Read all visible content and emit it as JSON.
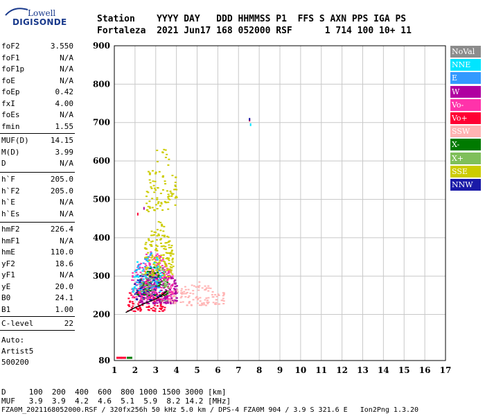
{
  "logo": {
    "top": "Lowell",
    "bottom": "DIGISONDE"
  },
  "header": {
    "row1": "Station    YYYY DAY   DDD HHMMSS P1  FFS S AXN PPS IGA PS",
    "row2": "Fortaleza  2021 Jun17 168 052000 RSF      1 714 100 10+ 11"
  },
  "params_group1": [
    {
      "name": "foF2",
      "value": "3.550"
    },
    {
      "name": "foF1",
      "value": "N/A"
    },
    {
      "name": "foF1p",
      "value": "N/A"
    },
    {
      "name": "foE",
      "value": "N/A"
    },
    {
      "name": "foEp",
      "value": "0.42"
    },
    {
      "name": "fxI",
      "value": "4.00"
    },
    {
      "name": "foEs",
      "value": "N/A"
    },
    {
      "name": "fmin",
      "value": "1.55"
    }
  ],
  "params_group2": [
    {
      "name": "MUF(D)",
      "value": "14.15"
    },
    {
      "name": "M(D)",
      "value": "3.99"
    },
    {
      "name": "D",
      "value": "N/A"
    }
  ],
  "params_group3": [
    {
      "name": "h`F",
      "value": "205.0"
    },
    {
      "name": "h`F2",
      "value": "205.0"
    },
    {
      "name": "h`E",
      "value": "N/A"
    },
    {
      "name": "h`Es",
      "value": "N/A"
    }
  ],
  "params_group4": [
    {
      "name": "hmF2",
      "value": "226.4"
    },
    {
      "name": "hmF1",
      "value": "N/A"
    },
    {
      "name": "hmE",
      "value": "110.0"
    },
    {
      "name": "yF2",
      "value": "18.6"
    },
    {
      "name": "yF1",
      "value": "N/A"
    },
    {
      "name": "yE",
      "value": "20.0"
    },
    {
      "name": "B0",
      "value": "24.1"
    },
    {
      "name": "B1",
      "value": "1.00"
    }
  ],
  "clevel": {
    "name": "C-level",
    "value": "22"
  },
  "auto": {
    "line1": "Auto:",
    "line2": "Artist5",
    "line3": "500200"
  },
  "legend": [
    {
      "label": "NoVal",
      "color": "#8c8c8c"
    },
    {
      "label": "NNE",
      "color": "#00e5ff"
    },
    {
      "label": "E",
      "color": "#3399ff"
    },
    {
      "label": "W",
      "color": "#b000a0"
    },
    {
      "label": "Vo-",
      "color": "#ff33aa"
    },
    {
      "label": "Vo+",
      "color": "#ff0033"
    },
    {
      "label": "SSW",
      "color": "#ffb3b3"
    },
    {
      "label": "X-",
      "color": "#007a00"
    },
    {
      "label": "X+",
      "color": "#7fbf5a"
    },
    {
      "label": "SSE",
      "color": "#cccc00"
    },
    {
      "label": "NNW",
      "color": "#1a1aa8"
    }
  ],
  "footer": {
    "line1": "D     100  200  400  600  800 1000 1500 3000 [km]",
    "line2": "MUF   3.9  3.9  4.2  4.6  5.1  5.9  8.2 14.2 [MHz]",
    "line3": "FZA0M_2021168052000.RSF / 320fx256h 50 kHz 5.0 km / DPS-4 FZA0M 904 / 3.9 S 321.6 E   Ion2Png 1.3.20"
  },
  "chart_data": {
    "type": "scatter",
    "xlim": [
      1,
      17
    ],
    "ylim": [
      80,
      900
    ],
    "xticks": [
      1,
      2,
      3,
      4,
      5,
      6,
      7,
      8,
      9,
      10,
      11,
      12,
      13,
      14,
      15,
      16,
      17
    ],
    "yticks": [
      80,
      200,
      300,
      400,
      500,
      600,
      700,
      800,
      900
    ],
    "grid": true,
    "clusters": [
      {
        "name": "Vo+",
        "x": [
          1.6,
          3.4
        ],
        "y": [
          210,
          300
        ],
        "n": 120
      },
      {
        "name": "W",
        "x": [
          2.2,
          4.0
        ],
        "y": [
          230,
          340
        ],
        "n": 260
      },
      {
        "name": "Vo-",
        "x": [
          1.8,
          3.8
        ],
        "y": [
          240,
          380
        ],
        "n": 200
      },
      {
        "name": "SSE",
        "x": [
          2.4,
          3.8
        ],
        "y": [
          300,
          460
        ],
        "n": 180
      },
      {
        "name": "SSE",
        "x": [
          2.5,
          4.0
        ],
        "y": [
          470,
          660
        ],
        "n": 90
      },
      {
        "name": "SSW",
        "x": [
          3.6,
          6.3
        ],
        "y": [
          225,
          290
        ],
        "n": 110
      },
      {
        "name": "NNE",
        "x": [
          1.8,
          3.4
        ],
        "y": [
          260,
          380
        ],
        "n": 60
      },
      {
        "name": "E",
        "x": [
          2.0,
          3.2
        ],
        "y": [
          270,
          370
        ],
        "n": 45
      },
      {
        "name": "X-",
        "x": [
          2.0,
          3.6
        ],
        "y": [
          250,
          330
        ],
        "n": 45
      },
      {
        "name": "X+",
        "x": [
          2.2,
          3.6
        ],
        "y": [
          260,
          350
        ],
        "n": 40
      },
      {
        "name": "NNW",
        "x": [
          1.9,
          3.2
        ],
        "y": [
          240,
          330
        ],
        "n": 35
      },
      {
        "name": "NoVal",
        "x": [
          2.2,
          3.6
        ],
        "y": [
          230,
          320
        ],
        "n": 20
      }
    ],
    "isolated": [
      {
        "name": "Vo+",
        "x": 7.5,
        "y": 710
      },
      {
        "name": "NNW",
        "x": 7.5,
        "y": 712
      },
      {
        "name": "NNE",
        "x": 7.55,
        "y": 698
      },
      {
        "name": "Vo+",
        "x": 2.1,
        "y": 465
      },
      {
        "name": "W",
        "x": 2.4,
        "y": 480
      }
    ],
    "bottom_marks": [
      {
        "name": "Vo+",
        "x": 1.1,
        "y": 88
      },
      {
        "name": "Vo+",
        "x": 1.3,
        "y": 88
      },
      {
        "name": "X-",
        "x": 1.6,
        "y": 88
      }
    ],
    "trace": {
      "x": [
        1.55,
        1.8,
        2.0,
        2.3,
        2.6,
        3.0,
        3.3,
        3.55
      ],
      "y": [
        205,
        212,
        218,
        225,
        232,
        240,
        250,
        262
      ]
    }
  }
}
